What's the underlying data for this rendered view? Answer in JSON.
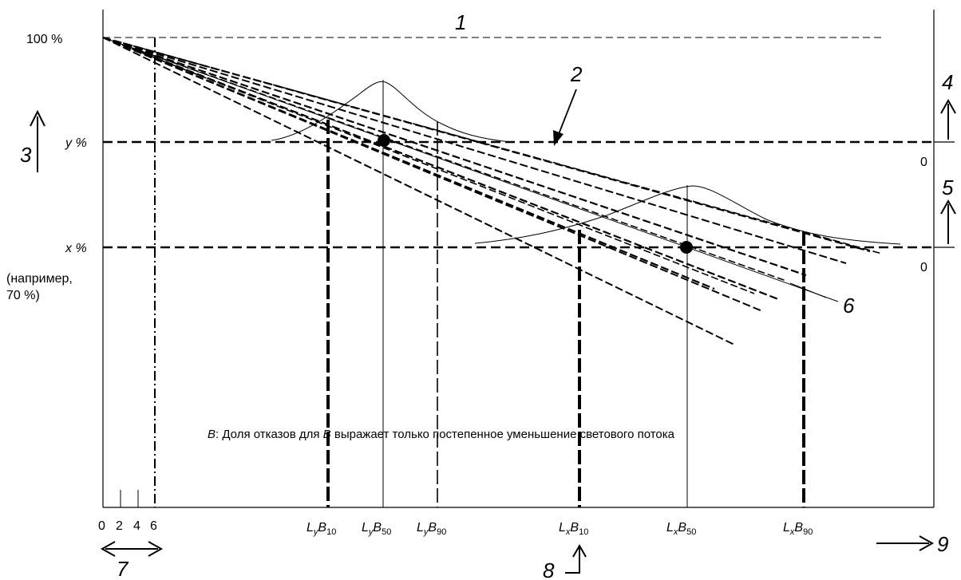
{
  "axis": {
    "y_top": "100 %",
    "y_level": "y %",
    "x_level": "x %",
    "example_line1": "(например,",
    "example_line2": "70 %)",
    "zero_upper": "0",
    "zero_lower": "0",
    "x_ticks": [
      "0",
      "2",
      "4",
      "6"
    ]
  },
  "callouts": {
    "n1": "1",
    "n2": "2",
    "n3": "3",
    "n4": "4",
    "n5": "5",
    "n6": "6",
    "n7": "7",
    "n8": "8",
    "n9": "9"
  },
  "bottom_labels": {
    "lyb10": {
      "L": "L",
      "s1": "y",
      "B": "B",
      "s2": "10"
    },
    "lyb50": {
      "L": "L",
      "s1": "y",
      "B": "B",
      "s2": "50"
    },
    "lyb90": {
      "L": "L",
      "s1": "y",
      "B": "B",
      "s2": "90"
    },
    "lxb10": {
      "L": "L",
      "s1": "x",
      "B": "B",
      "s2": "10"
    },
    "lxb50": {
      "L": "L",
      "s1": "x",
      "B": "B",
      "s2": "50"
    },
    "lxb90": {
      "L": "L",
      "s1": "x",
      "B": "B",
      "s2": "90"
    }
  },
  "note": {
    "b": "B",
    "rest1": ": Доля отказов для ",
    "b2": "B",
    "rest2": " выражает только постепенное уменьшение светового потока"
  }
}
